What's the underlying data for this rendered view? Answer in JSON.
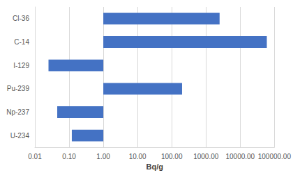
{
  "chart_data": {
    "type": "bar",
    "orientation": "horizontal",
    "log": "x",
    "xlabel": "Bq/g",
    "categories": [
      "Cl-36",
      "C-14",
      "I-129",
      "Pu-239",
      "Np-237",
      "U-234"
    ],
    "values": [
      2500,
      60000,
      0.025,
      200,
      0.045,
      0.12
    ],
    "color": "#4472c4",
    "xlim": [
      0.01,
      100000
    ],
    "xticks": [
      {
        "value": 0.01,
        "label": "0.01"
      },
      {
        "value": 0.1,
        "label": "0.10"
      },
      {
        "value": 1,
        "label": "1.00"
      },
      {
        "value": 10,
        "label": "10.00"
      },
      {
        "value": 100,
        "label": "100.00"
      },
      {
        "value": 1000,
        "label": "1000.00"
      },
      {
        "value": 10000,
        "label": "10000.00"
      },
      {
        "value": 100000,
        "label": "100000.00"
      }
    ],
    "grid": true
  }
}
